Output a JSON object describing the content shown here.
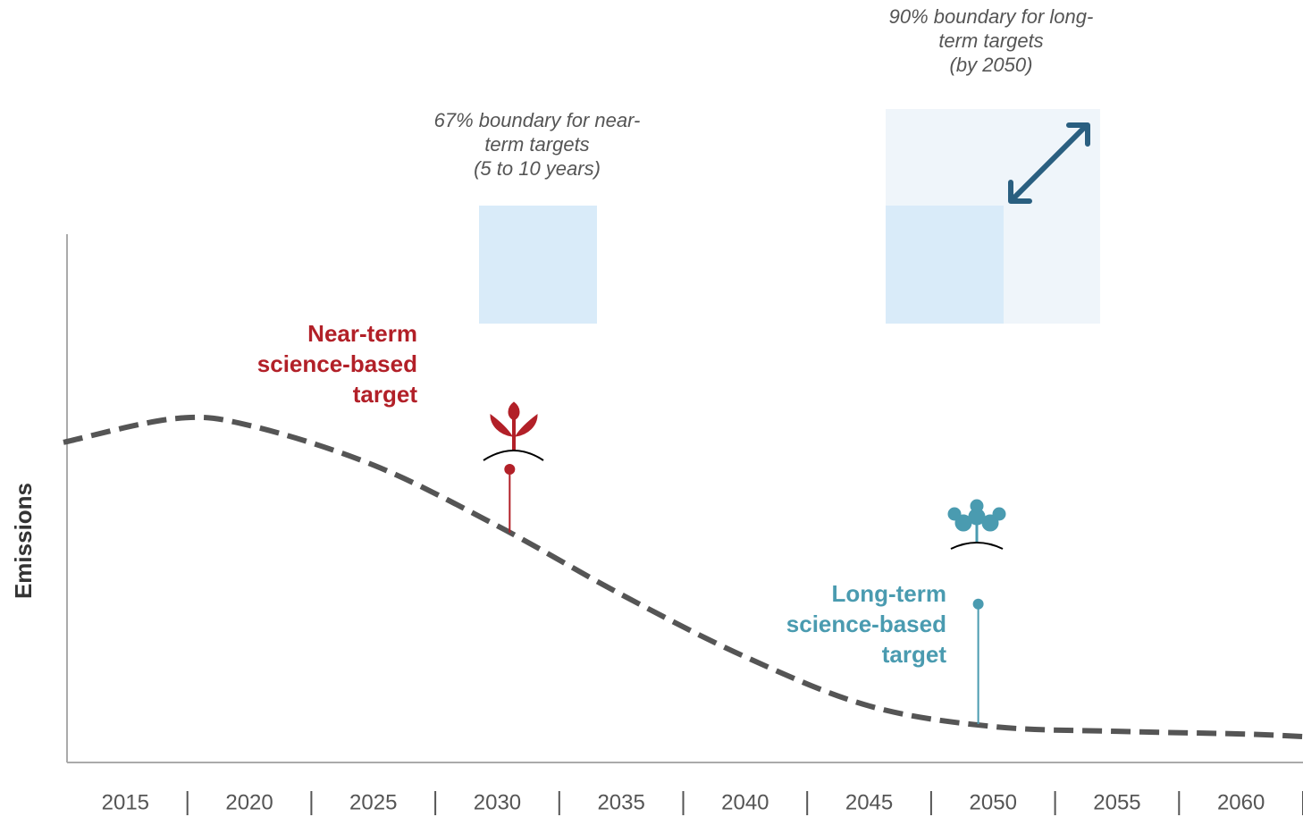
{
  "chart_data": {
    "type": "line",
    "y_label": "Emissions",
    "x": [
      2012.5,
      2017,
      2020,
      2025,
      2030,
      2035,
      2040,
      2045,
      2050,
      2055,
      2060,
      2062.5
    ],
    "values": [
      60.6,
      65.1,
      63.8,
      56.3,
      44.8,
      31.8,
      20.0,
      10.7,
      6.8,
      5.9,
      5.4,
      4.9
    ],
    "color": "#555555",
    "dashed": true,
    "xlim": [
      2012.5,
      2062.5
    ],
    "xticks": [
      2015,
      2020,
      2025,
      2030,
      2035,
      2040,
      2045,
      2050,
      2055,
      2060
    ],
    "ylim": [
      0,
      100
    ],
    "targets": [
      {
        "lines": [
          "Near-term",
          "science-based",
          "target"
        ],
        "x": 2030.5,
        "y": 55.5,
        "color": "#b22028"
      },
      {
        "lines": [
          "Long-term",
          "science-based",
          "target"
        ],
        "x": 2049.4,
        "y": 30.0,
        "color": "#4a9bb0"
      }
    ],
    "boundaries": [
      {
        "lines": [
          "67% boundary for near-",
          "term targets",
          "(5 to 10 years)"
        ]
      },
      {
        "lines": [
          "90% boundary for long-",
          "term targets",
          "(by 2050)"
        ]
      }
    ]
  }
}
